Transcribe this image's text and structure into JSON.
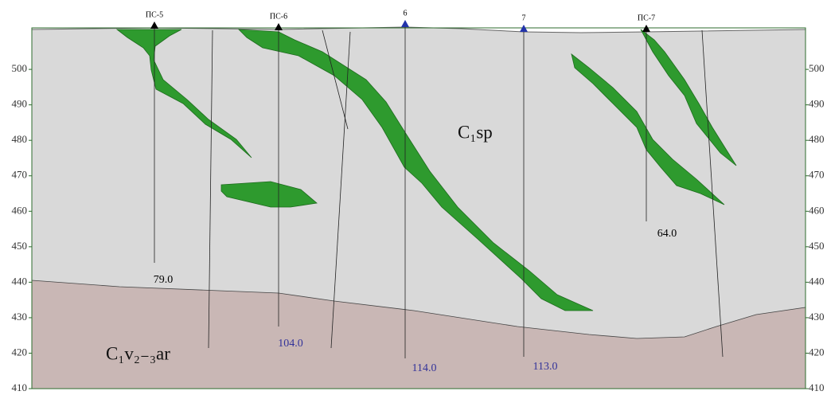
{
  "axis": {
    "ylim": [
      410,
      511.7
    ],
    "yticks": [
      410,
      420,
      430,
      440,
      450,
      460,
      470,
      480,
      490,
      500
    ]
  },
  "wells": [
    {
      "label": "ПС-5",
      "depth": "79.0"
    },
    {
      "label": "ПС-6",
      "depth": "104.0"
    },
    {
      "label": "6",
      "depth": "114.0"
    },
    {
      "label": "7",
      "depth": "113.0"
    },
    {
      "label": "ПС-7",
      "depth": "64.0"
    }
  ],
  "formations": {
    "upper": "C₁sp",
    "lower": "C₁v₂₋₃ar"
  }
}
